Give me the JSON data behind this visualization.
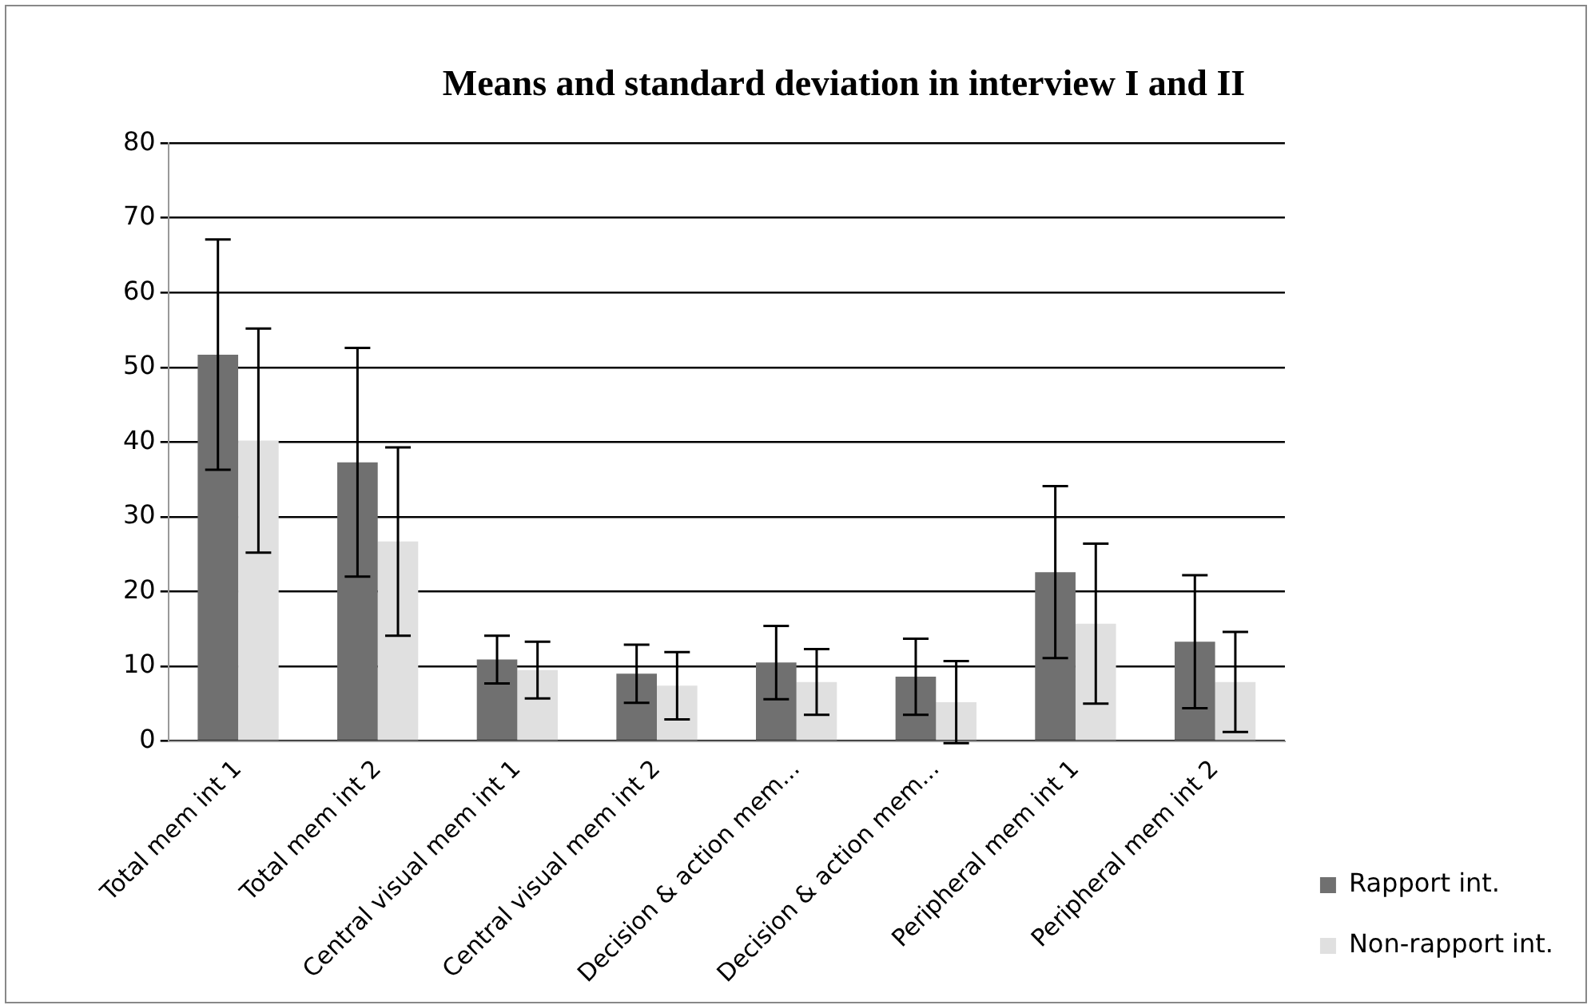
{
  "chart_data": {
    "type": "bar",
    "title": "Means and standard deviation in interview I and II",
    "categories": [
      "Total mem int 1",
      "Total mem int 2",
      "Central visual mem int 1",
      "Central visual mem int 2",
      "Decision & action mem...",
      "Decision & action mem...",
      "Peripheral mem int 1",
      "Peripheral mem int 2"
    ],
    "series": [
      {
        "name": "Rapport int.",
        "color": "#707070",
        "values": [
          51.7,
          37.3,
          10.9,
          9.0,
          10.5,
          8.6,
          22.6,
          13.3
        ],
        "errors": [
          15.4,
          15.3,
          3.2,
          3.9,
          4.9,
          5.1,
          11.5,
          8.9
        ]
      },
      {
        "name": "Non-rapport int.",
        "color": "#e0e0e0",
        "values": [
          40.2,
          26.7,
          9.5,
          7.4,
          7.9,
          5.2,
          15.7,
          7.9
        ],
        "errors": [
          15,
          12.6,
          3.8,
          4.5,
          4.4,
          5.5,
          10.7,
          6.7
        ]
      }
    ],
    "ylim": [
      0,
      80
    ],
    "yticks": [
      0,
      10,
      20,
      30,
      40,
      50,
      60,
      70,
      80
    ],
    "grid": "y",
    "legend": "right"
  }
}
